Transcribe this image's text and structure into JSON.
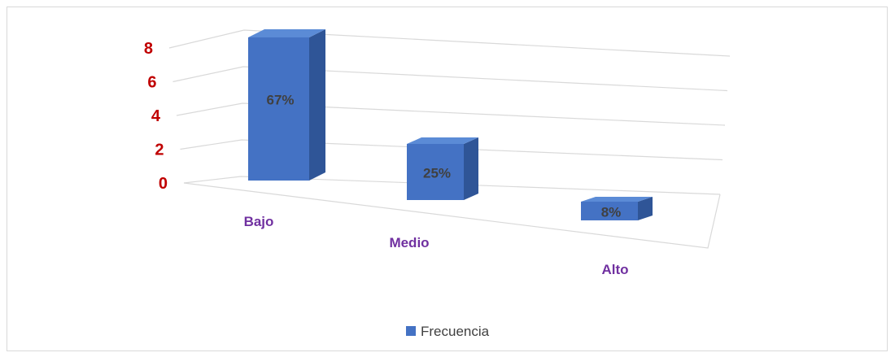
{
  "chart_data": {
    "type": "bar",
    "style": "3d-column",
    "categories": [
      "Bajo",
      "Medio",
      "Alto"
    ],
    "series": [
      {
        "name": "Frecuencia",
        "values": [
          8,
          3,
          1
        ],
        "data_labels": [
          "67%",
          "25%",
          "8%"
        ]
      }
    ],
    "ylim": [
      0,
      8
    ],
    "yticks": [
      "0",
      "2",
      "4",
      "6",
      "8"
    ],
    "grid": true,
    "legend": "bottom",
    "colors": {
      "bar": "#4472c4",
      "ytick": "#c00000",
      "category": "#7030a0",
      "gridline": "#d9d9d9"
    }
  }
}
